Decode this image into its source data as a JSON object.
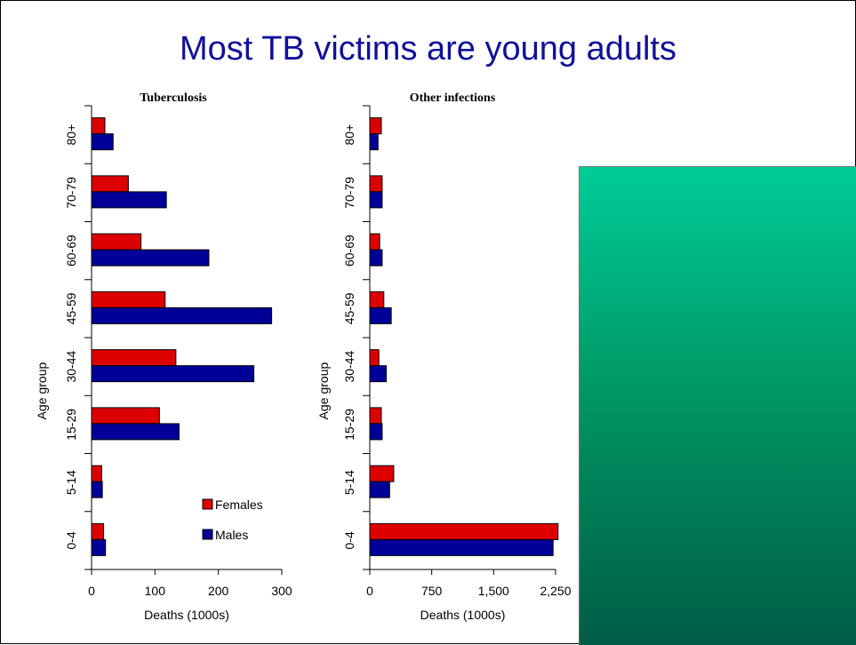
{
  "slide": {
    "title": "Most TB victims are young adults"
  },
  "colors": {
    "females": "#dd0000",
    "males": "#000099",
    "title": "#10109a",
    "panel_top": "#00cc99",
    "panel_bottom": "#005c45"
  },
  "chart_data": [
    {
      "type": "bar",
      "orientation": "horizontal",
      "title": "Tuberculosis",
      "xlabel": "Deaths (1000s)",
      "ylabel": "Age group",
      "categories": [
        "0-4",
        "5-14",
        "15-29",
        "30-44",
        "45-59",
        "60-69",
        "70-79",
        "80+"
      ],
      "series": [
        {
          "name": "Females",
          "values": [
            19,
            16,
            107,
            133,
            116,
            78,
            58,
            21
          ]
        },
        {
          "name": "Males",
          "values": [
            22,
            17,
            138,
            256,
            284,
            185,
            118,
            34
          ]
        }
      ],
      "xlim": [
        0,
        300
      ],
      "xticks": [
        "0",
        "100",
        "200",
        "300"
      ],
      "legend": {
        "position": "bottom-right",
        "entries": [
          "Females",
          "Males"
        ]
      }
    },
    {
      "type": "bar",
      "orientation": "horizontal",
      "title": "Other infections",
      "xlabel": "Deaths (1000s)",
      "ylabel": "Age group",
      "categories": [
        "0-4",
        "5-14",
        "15-29",
        "30-44",
        "45-59",
        "60-69",
        "70-79",
        "80+"
      ],
      "series": [
        {
          "name": "Females",
          "values": [
            2280,
            290,
            140,
            110,
            170,
            120,
            150,
            140
          ]
        },
        {
          "name": "Males",
          "values": [
            2220,
            240,
            150,
            200,
            260,
            150,
            150,
            100
          ]
        }
      ],
      "xlim": [
        0,
        2250
      ],
      "xticks": [
        "0",
        "750",
        "1,500",
        "2,250"
      ]
    }
  ]
}
